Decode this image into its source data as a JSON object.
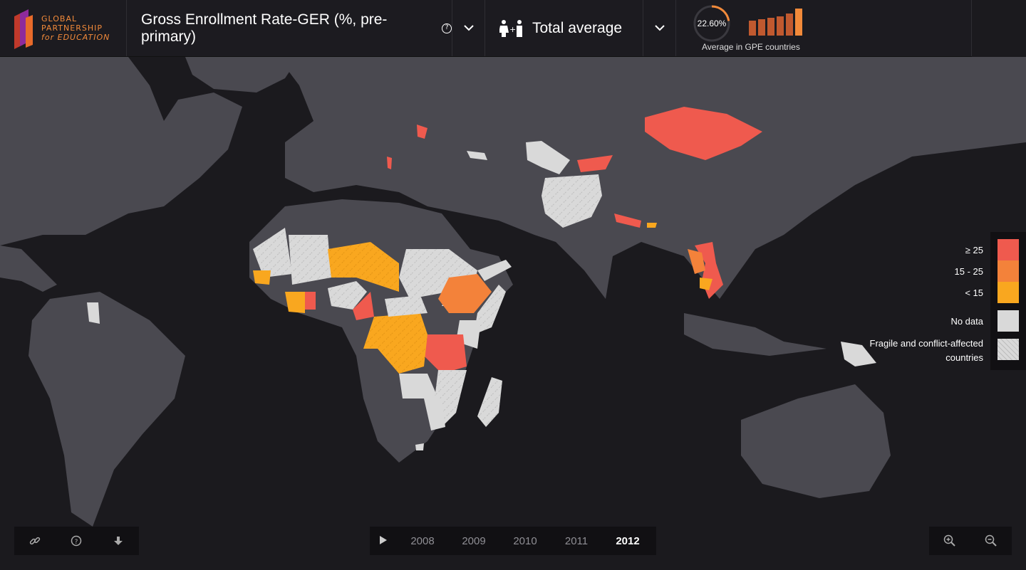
{
  "org": {
    "logo_lines": [
      "GLOBAL",
      "PARTNERSHIP",
      "for EDUCATION"
    ],
    "brand_color": "#f28a3a"
  },
  "header": {
    "indicator_label": "Gross Enrollment Rate-GER (%, pre-primary)",
    "gender_label": "Total average",
    "average_value": "22.60%",
    "average_caption": "Average in GPE countries",
    "trend_bars": [
      0.55,
      0.6,
      0.65,
      0.7,
      0.8,
      1.0
    ]
  },
  "legend": {
    "items": [
      {
        "label": "≥ 25",
        "color": "#ef5a4e"
      },
      {
        "label": "15 - 25",
        "color": "#f3823a"
      },
      {
        "label": "< 15",
        "color": "#f9a71f"
      },
      {
        "label": "No data",
        "color": "#d9d9d9"
      },
      {
        "label": "Fragile and conflict-affected countries",
        "color": "#d9d9d9",
        "hatched": true
      }
    ]
  },
  "timeline": {
    "years": [
      "2008",
      "2009",
      "2010",
      "2011",
      "2012"
    ],
    "active_year": "2012"
  },
  "colors": {
    "ocean": "#1b1a1e",
    "land": "#4a4950",
    "high": "#ef5a4e",
    "mid": "#f3823a",
    "low": "#f9a71f",
    "nodata": "#d9d9d9"
  },
  "tools": {
    "icons": [
      "link-icon",
      "help-icon",
      "download-icon"
    ]
  },
  "zoom": {
    "icons": [
      "zoom-in-icon",
      "zoom-out-icon"
    ]
  }
}
